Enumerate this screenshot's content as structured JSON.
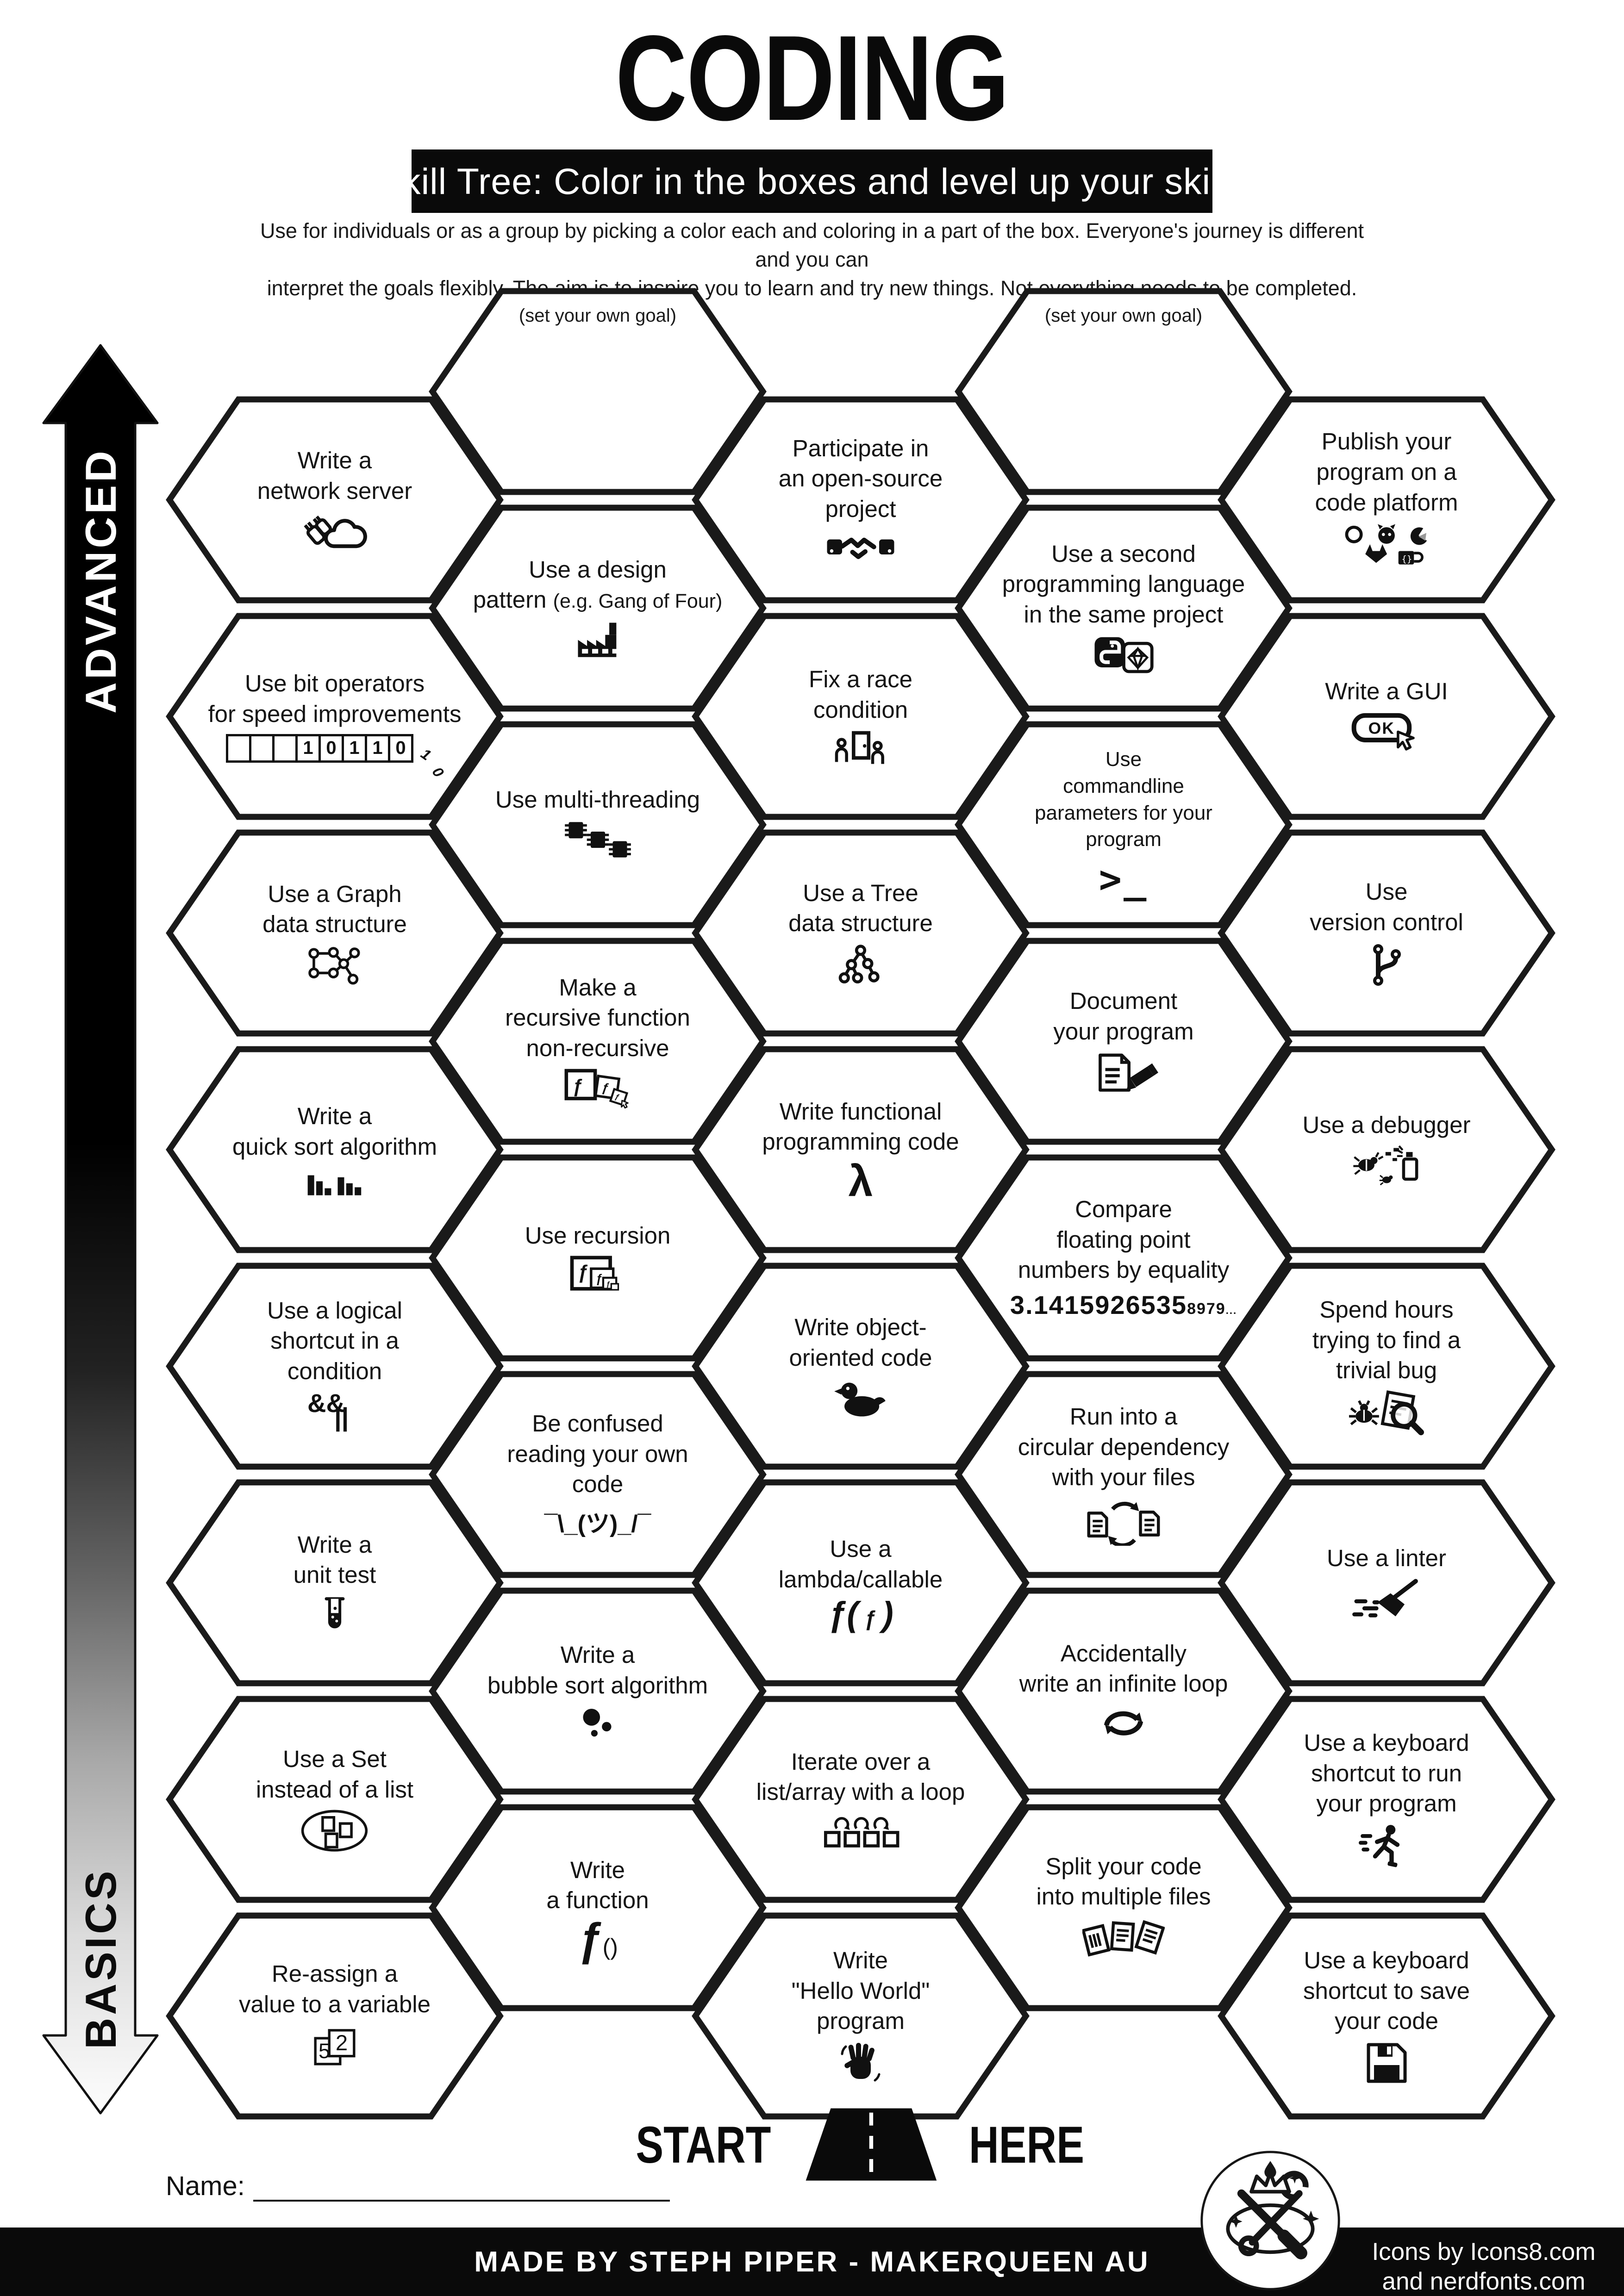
{
  "title": "CODING",
  "subtitle": "Skill Tree:  Color in the boxes and level up your skills",
  "description": {
    "line1": "Use for individuals or as a group by picking a color each and coloring in a part of the box.  Everyone's journey is different and you can",
    "line2": "interpret the goals flexibly.  The aim is to inspire you to learn and try new things. Not everything needs to be completed."
  },
  "axis": {
    "top_label": "ADVANCED",
    "bottom_label": "BASICS"
  },
  "start": {
    "left": "START",
    "right": "HERE"
  },
  "name_label": "Name:",
  "footer": {
    "made_by": "MADE BY STEPH PIPER  -  MAKERQUEEN AU",
    "credits_line1": "Icons by Icons8.com",
    "credits_line2": "and nerdfonts.com"
  },
  "hexes": [
    {
      "id": "goal-top-left",
      "col": 1,
      "row": 0,
      "goal": true,
      "label": [
        "(set your own goal)"
      ],
      "icon": null
    },
    {
      "id": "goal-top-right",
      "col": 3,
      "row": 0,
      "goal": true,
      "label": [
        "(set your own goal)"
      ],
      "icon": null
    },
    {
      "id": "write-a-network-server",
      "col": 0,
      "row": 0,
      "label": [
        "Write a",
        "network server"
      ],
      "icon": "network-server-icon"
    },
    {
      "id": "use-bit-operators",
      "col": 0,
      "row": 1,
      "label": [
        "Use bit operators",
        "for speed improvements"
      ],
      "icon": "bit-cells-icon",
      "icon_parts": [
        "",
        "",
        "",
        "1",
        "0",
        "1",
        "1",
        "0"
      ],
      "icon_extra": [
        "1",
        "0"
      ]
    },
    {
      "id": "use-a-graph-data-structure",
      "col": 0,
      "row": 2,
      "label": [
        "Use a Graph",
        "data structure"
      ],
      "icon": "graph-icon"
    },
    {
      "id": "write-a-quick-sort-algorithm",
      "col": 0,
      "row": 3,
      "label": [
        "Write a",
        "quick sort algorithm"
      ],
      "icon": "quicksort-bars-icon"
    },
    {
      "id": "use-a-logical-shortcut",
      "col": 0,
      "row": 4,
      "label": [
        "Use a logical",
        "shortcut in a",
        "condition"
      ],
      "icon": "logical-operators-icon",
      "icon_parts": [
        "&&",
        "||"
      ]
    },
    {
      "id": "write-a-unit-test",
      "col": 0,
      "row": 5,
      "label": [
        "Write a",
        "unit test"
      ],
      "icon": "test-tube-icon"
    },
    {
      "id": "use-a-set",
      "col": 0,
      "row": 6,
      "label": [
        "Use a Set",
        "instead of a list"
      ],
      "icon": "set-ellipse-icon"
    },
    {
      "id": "reassign-a-value",
      "col": 0,
      "row": 7,
      "label": [
        "Re-assign a",
        "value to a variable"
      ],
      "icon": "reassign-cards-icon",
      "icon_parts": [
        "5",
        "2"
      ]
    },
    {
      "id": "use-a-design-pattern",
      "col": 1,
      "row": 1,
      "label": [
        "Use a design",
        "pattern (e.g. Gang of Four)"
      ],
      "icon": "factory-icon"
    },
    {
      "id": "use-multi-threading",
      "col": 1,
      "row": 2,
      "label": [
        "Use multi-threading"
      ],
      "icon": "chips-icon"
    },
    {
      "id": "make-recursive-non-recursive",
      "col": 1,
      "row": 3,
      "label": [
        "Make a",
        "recursive function",
        "non-recursive"
      ],
      "icon": "nested-f-pencil-icon"
    },
    {
      "id": "use-recursion",
      "col": 1,
      "row": 4,
      "label": [
        "Use recursion"
      ],
      "icon": "nested-f-icon"
    },
    {
      "id": "be-confused-reading-your-own-code",
      "col": 1,
      "row": 5,
      "label": [
        "Be confused",
        "reading your own",
        "code"
      ],
      "icon": "shrug-icon",
      "icon_text": "¯\\_(ツ)_/¯"
    },
    {
      "id": "write-a-bubble-sort-algorithm",
      "col": 1,
      "row": 6,
      "label": [
        "Write a",
        "bubble sort algorithm"
      ],
      "icon": "bubbles-icon"
    },
    {
      "id": "write-a-function",
      "col": 1,
      "row": 7,
      "label": [
        "Write",
        "a function"
      ],
      "icon": "function-icon",
      "icon_parts": [
        "ƒ",
        "()"
      ]
    },
    {
      "id": "participate-in-open-source",
      "col": 2,
      "row": 0,
      "label": [
        "Participate in",
        "an open-source",
        "project"
      ],
      "icon": "handshake-icon"
    },
    {
      "id": "fix-a-race-condition",
      "col": 2,
      "row": 1,
      "label": [
        "Fix a race",
        "condition"
      ],
      "icon": "race-door-icon"
    },
    {
      "id": "use-a-tree-data-structure",
      "col": 2,
      "row": 2,
      "label": [
        "Use a Tree",
        "data structure"
      ],
      "icon": "tree-icon"
    },
    {
      "id": "write-functional-programming-code",
      "col": 2,
      "row": 3,
      "label": [
        "Write functional",
        "programming code"
      ],
      "icon": "lambda-icon",
      "icon_text": "λ"
    },
    {
      "id": "write-object-oriented-code",
      "col": 2,
      "row": 4,
      "label": [
        "Write object-",
        "oriented code"
      ],
      "icon": "duck-icon"
    },
    {
      "id": "use-a-lambda-callable",
      "col": 2,
      "row": 5,
      "label": [
        "Use a",
        "lambda/callable"
      ],
      "icon": "lambda-callable-icon",
      "icon_parts": [
        "ƒ(",
        "ƒ",
        ")"
      ]
    },
    {
      "id": "iterate-over-a-list",
      "col": 2,
      "row": 6,
      "label": [
        "Iterate over a",
        "list/array with a loop"
      ],
      "icon": "iterate-icon"
    },
    {
      "id": "write-hello-world",
      "col": 2,
      "row": 7,
      "label": [
        "Write",
        "\"Hello World\"",
        "program"
      ],
      "icon": "wave-hand-icon"
    },
    {
      "id": "use-a-second-language",
      "col": 3,
      "row": 1,
      "label": [
        "Use a second",
        "programming language",
        "in the same project"
      ],
      "icon": "python-ruby-icon"
    },
    {
      "id": "use-commandline-parameters",
      "col": 3,
      "row": 2,
      "small_label": true,
      "label": [
        "Use",
        "commandline",
        "parameters for your",
        "program"
      ],
      "icon": "prompt-icon",
      "icon_text": ">_"
    },
    {
      "id": "document-your-program",
      "col": 3,
      "row": 3,
      "label": [
        "Document",
        "your program"
      ],
      "icon": "doc-pencil-icon"
    },
    {
      "id": "compare-floating-point",
      "col": 3,
      "row": 4,
      "label": [
        "Compare",
        "floating point",
        "numbers by equality"
      ],
      "icon": "pi-digits-icon",
      "icon_parts": [
        "3.1415926535",
        "8979",
        "..."
      ]
    },
    {
      "id": "run-into-circular-dependency",
      "col": 3,
      "row": 5,
      "label": [
        "Run into a",
        "circular dependency",
        "with your files"
      ],
      "icon": "circular-deps-icon"
    },
    {
      "id": "accidentally-infinite-loop",
      "col": 3,
      "row": 6,
      "label": [
        "Accidentally",
        "write an infinite loop"
      ],
      "icon": "infinite-loop-icon"
    },
    {
      "id": "split-your-code",
      "col": 3,
      "row": 7,
      "label": [
        "Split your code",
        "into multiple files"
      ],
      "icon": "split-files-icon"
    },
    {
      "id": "publish-your-program",
      "col": 4,
      "row": 0,
      "label": [
        "Publish your",
        "program on a",
        "code platform"
      ],
      "icon": "platform-logos-icon"
    },
    {
      "id": "write-a-gui",
      "col": 4,
      "row": 1,
      "label": [
        "Write a GUI"
      ],
      "icon": "ok-button-icon",
      "icon_parts": [
        "OK"
      ]
    },
    {
      "id": "use-version-control",
      "col": 4,
      "row": 2,
      "label": [
        "Use",
        "version control"
      ],
      "icon": "git-branch-icon"
    },
    {
      "id": "use-a-debugger",
      "col": 4,
      "row": 3,
      "label": [
        "Use a debugger"
      ],
      "icon": "debugger-icon"
    },
    {
      "id": "find-a-trivial-bug",
      "col": 4,
      "row": 4,
      "label": [
        "Spend hours",
        "trying to find a",
        "trivial bug"
      ],
      "icon": "bug-magnifier-icon"
    },
    {
      "id": "use-a-linter",
      "col": 4,
      "row": 5,
      "label": [
        "Use a linter"
      ],
      "icon": "broom-icon"
    },
    {
      "id": "shortcut-to-run-program",
      "col": 4,
      "row": 6,
      "label": [
        "Use a keyboard",
        "shortcut to run",
        "your program"
      ],
      "icon": "runner-icon"
    },
    {
      "id": "shortcut-to-save-code",
      "col": 4,
      "row": 7,
      "label": [
        "Use a keyboard",
        "shortcut to save",
        "your code"
      ],
      "icon": "floppy-icon"
    }
  ]
}
